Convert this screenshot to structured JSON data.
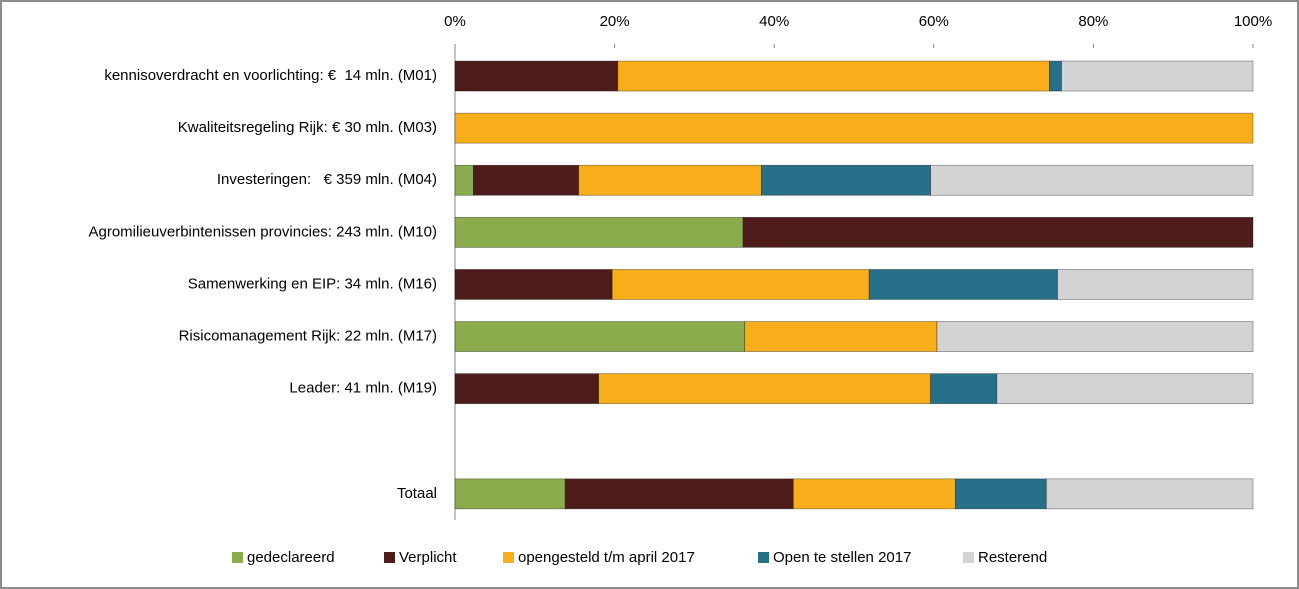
{
  "chart_data": {
    "type": "stacked-bar-horizontal",
    "categories": [
      "kennisoverdracht en voorlichting: €  14 mln. (M01)",
      "Kwaliteitsregeling Rijk: € 30 mln. (M03)",
      "Investeringen:   € 359 mln. (M04)",
      "Agromilieuverbintenissen provincies: 243 mln. (M10)",
      "Samenwerking en EIP: 34 mln. (M16)",
      "Risicomanagement Rijk: 22 mln. (M17)",
      "Leader: 41 mln. (M19)",
      null,
      "Totaal"
    ],
    "series": [
      {
        "name": "gedeclareerd",
        "color": "#8aac4c",
        "values": [
          null,
          null,
          2.3,
          36.1,
          null,
          36.3,
          null,
          null,
          13.8
        ]
      },
      {
        "name": "Verplicht",
        "color": "#4f1c1c",
        "values": [
          20.4,
          null,
          13.2,
          63.9,
          19.7,
          null,
          18.0,
          null,
          28.6
        ]
      },
      {
        "name": "opengesteld t/m april 2017",
        "color": "#f7ae1a",
        "values": [
          54.1,
          100,
          22.9,
          null,
          32.2,
          24.1,
          41.6,
          null,
          20.3
        ]
      },
      {
        "name": "Open te stellen 2017",
        "color": "#26708a",
        "values": [
          1.5,
          null,
          21.2,
          null,
          23.6,
          null,
          8.3,
          null,
          11.4
        ]
      },
      {
        "name": "Resterend",
        "color": "#d3d3d3",
        "values": [
          24.0,
          null,
          40.4,
          null,
          24.5,
          39.6,
          32.1,
          null,
          25.9
        ]
      }
    ],
    "xlim": [
      0,
      100
    ],
    "xticks": [
      {
        "value": 0,
        "label": "0%"
      },
      {
        "value": 20,
        "label": "20%"
      },
      {
        "value": 40,
        "label": "40%"
      },
      {
        "value": 60,
        "label": "60%"
      },
      {
        "value": 80,
        "label": "80%"
      },
      {
        "value": 100,
        "label": "100%"
      }
    ],
    "legend": "bottom"
  }
}
